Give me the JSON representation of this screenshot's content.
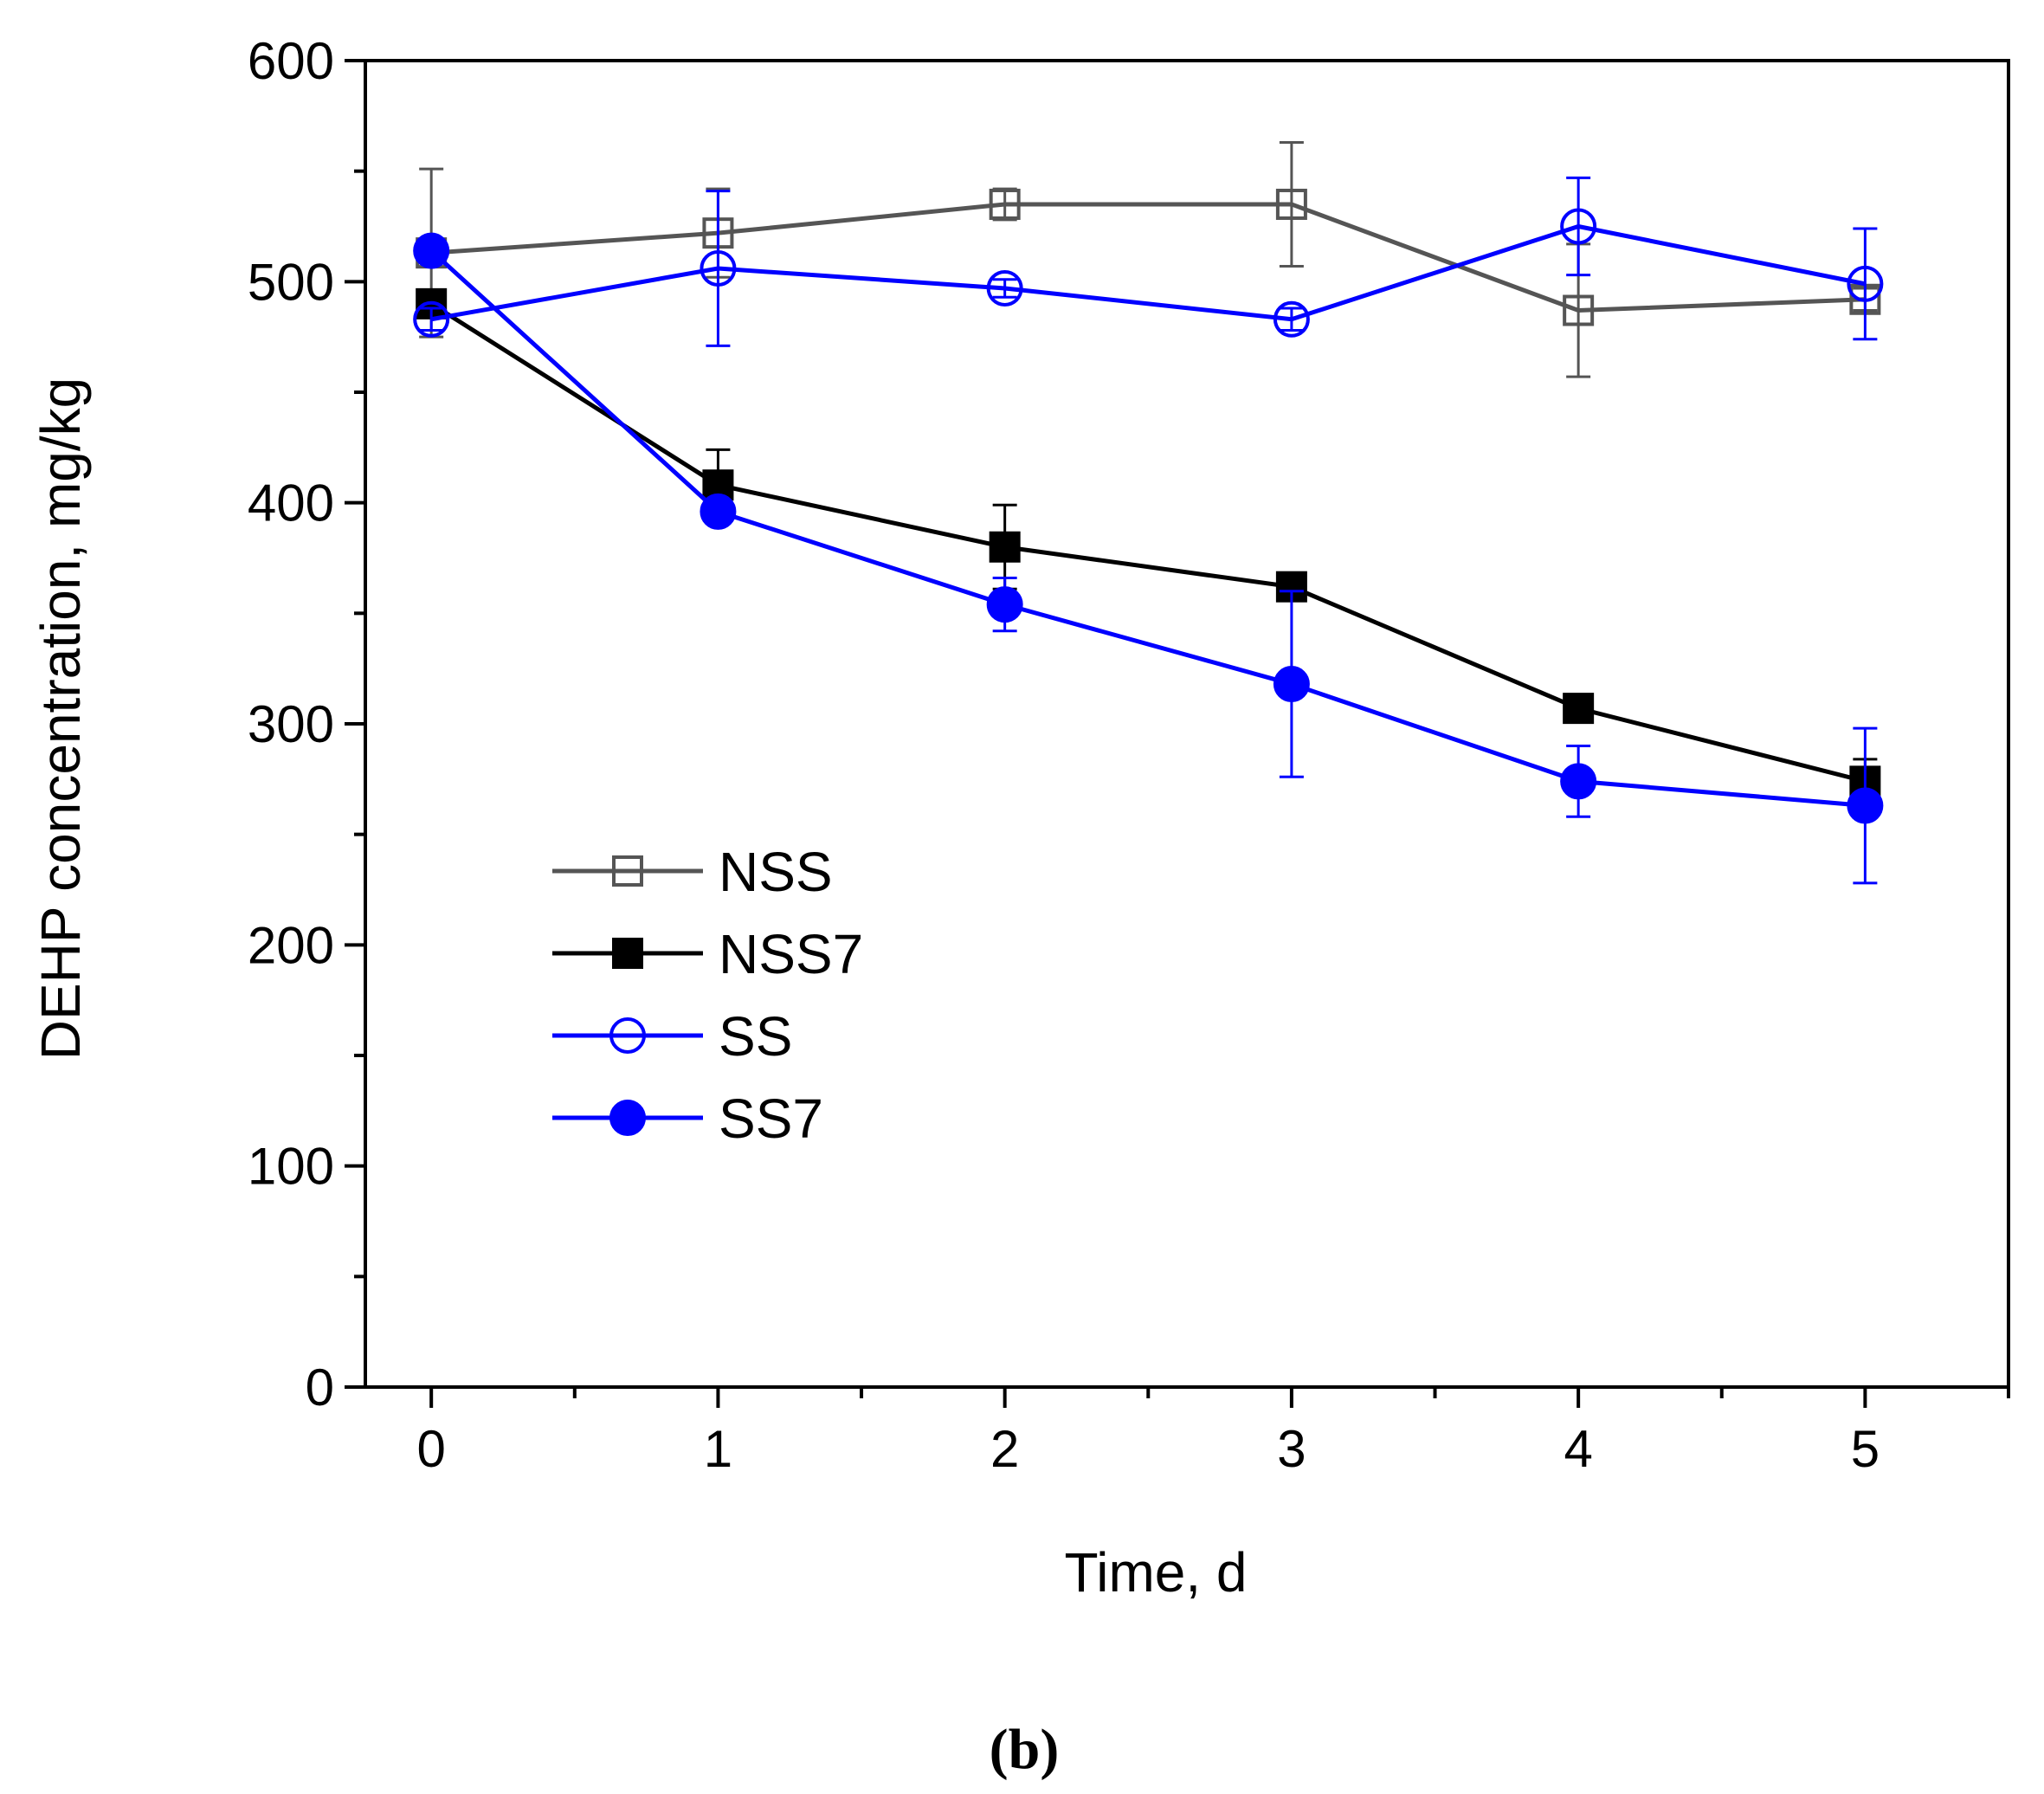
{
  "chart_data": {
    "type": "line",
    "xlabel": "Time, d",
    "ylabel": "DEHP concentration, mg/kg",
    "panel_label": "(b)",
    "xlim": [
      -0.23,
      5.5
    ],
    "ylim": [
      0,
      600
    ],
    "x_ticks": [
      0,
      1,
      2,
      3,
      4,
      5
    ],
    "y_ticks": [
      0,
      100,
      200,
      300,
      400,
      500,
      600
    ],
    "grid": false,
    "legend_position": "lower-left",
    "x": [
      0,
      1,
      2,
      3,
      4,
      5
    ],
    "series": [
      {
        "name": "NSS",
        "color": "#555555",
        "marker": "square-open",
        "values": [
          513,
          522,
          535,
          535,
          487,
          492
        ],
        "errors": [
          38,
          20,
          7,
          28,
          30,
          5
        ]
      },
      {
        "name": "NSS7",
        "color": "#000000",
        "marker": "square-filled",
        "values": [
          490,
          408,
          380,
          362,
          307,
          274
        ],
        "errors": [
          5,
          16,
          19,
          5,
          5,
          10
        ]
      },
      {
        "name": "SS",
        "color": "#0000ff",
        "marker": "circle-open",
        "values": [
          483,
          506,
          497,
          483,
          525,
          499
        ],
        "errors": [
          5,
          35,
          4,
          5,
          22,
          25
        ]
      },
      {
        "name": "SS7",
        "color": "#0000ff",
        "marker": "circle-filled",
        "values": [
          514,
          396,
          354,
          318,
          274,
          263
        ],
        "errors": [
          5,
          5,
          12,
          42,
          16,
          35
        ]
      }
    ]
  }
}
